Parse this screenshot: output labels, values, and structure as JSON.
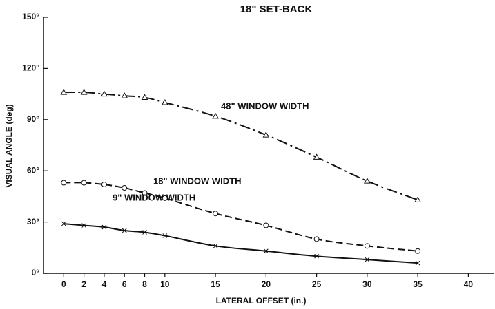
{
  "chart_data": {
    "type": "line",
    "title": "18\" SET-BACK",
    "x_label": "LATERAL OFFSET (in.)",
    "y_label": "VISUAL ANGLE (deg)",
    "x": [
      0,
      2,
      4,
      6,
      8,
      10,
      15,
      20,
      25,
      30,
      35
    ],
    "series": [
      {
        "name": "48\" WINDOW WIDTH",
        "color": "#111111",
        "line_style": "dash-dot",
        "marker": "triangle",
        "values": [
          106,
          106,
          105,
          104,
          103,
          100,
          92,
          81,
          68,
          54,
          43
        ]
      },
      {
        "name": "18\" WINDOW WIDTH",
        "color": "#111111",
        "line_style": "dashed",
        "marker": "circle",
        "values": [
          53,
          53,
          52,
          50,
          47,
          44,
          35,
          28,
          20,
          16,
          13
        ]
      },
      {
        "name": "9\" WINDOW WIDTH",
        "color": "#111111",
        "line_style": "solid",
        "marker": "x",
        "values": [
          29,
          28,
          27,
          25,
          24,
          22,
          16,
          13,
          10,
          8,
          6
        ]
      }
    ],
    "xlim": [
      -2,
      42.5
    ],
    "xticks": [
      0,
      2,
      4,
      6,
      8,
      10,
      15,
      20,
      25,
      30,
      35,
      40
    ],
    "ylim": [
      0,
      150
    ],
    "yticks": [
      {
        "value": 0,
        "label": "0°"
      },
      {
        "value": 30,
        "label": "30°"
      },
      {
        "value": 60,
        "label": "60°"
      },
      {
        "value": 90,
        "label": "90°"
      },
      {
        "value": 120,
        "label": "120°"
      },
      {
        "value": 150,
        "label": "150°"
      }
    ]
  }
}
